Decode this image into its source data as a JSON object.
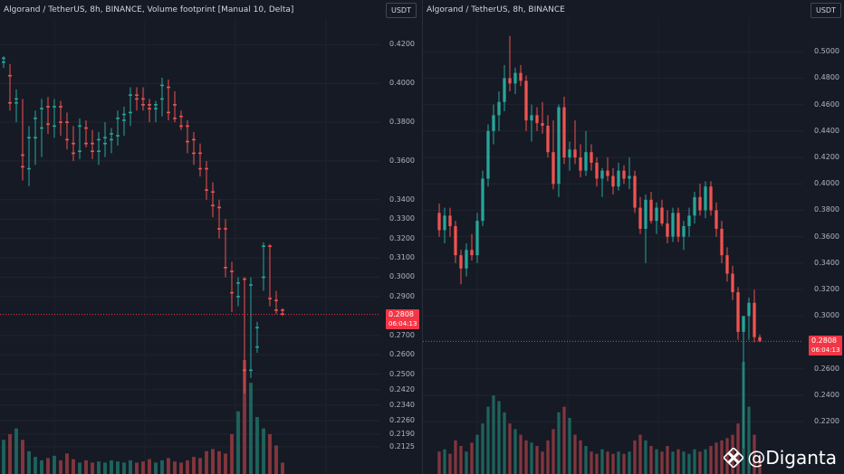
{
  "left_panel": {
    "title": "Algorand / TetherUS, 8h, BINANCE, Volume footprint [Manual 10, Delta]",
    "currency": "USDT",
    "axis_labels": [
      "0.4200",
      "0.4000",
      "0.3800",
      "0.3600",
      "0.3400",
      "0.3300",
      "0.3200",
      "0.3100",
      "0.3000",
      "0.2900",
      "0.2700",
      "0.2600",
      "0.2500",
      "0.2420",
      "0.2340",
      "0.2260",
      "0.2190",
      "0.2125"
    ],
    "axis_values": [
      0.42,
      0.4,
      0.38,
      0.36,
      0.34,
      0.33,
      0.32,
      0.31,
      0.3,
      0.29,
      0.27,
      0.26,
      0.25,
      0.242,
      0.234,
      0.226,
      0.219,
      0.2125
    ],
    "current_price": "0.2808",
    "countdown": "06:04:13"
  },
  "right_panel": {
    "title": "Algorand / TetherUS, 8h, BINANCE",
    "currency": "USDT",
    "axis_labels": [
      "0.5000",
      "0.4800",
      "0.4600",
      "0.4400",
      "0.4200",
      "0.4000",
      "0.3800",
      "0.3600",
      "0.3400",
      "0.3200",
      "0.3000",
      "0.2600",
      "0.2400",
      "0.2200"
    ],
    "axis_values": [
      0.5,
      0.48,
      0.46,
      0.44,
      0.42,
      0.4,
      0.38,
      0.36,
      0.34,
      0.32,
      0.3,
      0.26,
      0.24,
      0.22
    ],
    "current_price": "0.2808",
    "countdown": "06:04:13"
  },
  "watermark": {
    "handle": "@Diganta",
    "icon": "binance-logo-icon"
  },
  "colors": {
    "up": "#26a69a",
    "down": "#ef5350",
    "background": "#161a25",
    "price_tag": "#f23645"
  },
  "chart_data": [
    {
      "type": "candlestick",
      "title": "Algorand / TetherUS, 8h, BINANCE, Volume footprint [Manual 10, Delta]",
      "ylim": [
        0.205,
        0.43
      ],
      "series": [
        {
          "name": "",
          "values": [
            {
              "o": 0.411,
              "h": 0.414,
              "l": 0.408,
              "c": 0.413
            },
            {
              "o": 0.404,
              "h": 0.41,
              "l": 0.386,
              "c": 0.39
            },
            {
              "o": 0.39,
              "h": 0.397,
              "l": 0.38,
              "c": 0.392
            },
            {
              "o": 0.363,
              "h": 0.392,
              "l": 0.35,
              "c": 0.357
            },
            {
              "o": 0.356,
              "h": 0.378,
              "l": 0.347,
              "c": 0.372
            },
            {
              "o": 0.372,
              "h": 0.386,
              "l": 0.358,
              "c": 0.382
            },
            {
              "o": 0.377,
              "h": 0.392,
              "l": 0.362,
              "c": 0.387
            },
            {
              "o": 0.388,
              "h": 0.393,
              "l": 0.374,
              "c": 0.379
            },
            {
              "o": 0.378,
              "h": 0.392,
              "l": 0.372,
              "c": 0.388
            },
            {
              "o": 0.388,
              "h": 0.391,
              "l": 0.373,
              "c": 0.38
            },
            {
              "o": 0.38,
              "h": 0.385,
              "l": 0.366,
              "c": 0.371
            },
            {
              "o": 0.369,
              "h": 0.378,
              "l": 0.36,
              "c": 0.364
            },
            {
              "o": 0.365,
              "h": 0.382,
              "l": 0.361,
              "c": 0.378
            },
            {
              "o": 0.377,
              "h": 0.381,
              "l": 0.367,
              "c": 0.369
            },
            {
              "o": 0.369,
              "h": 0.376,
              "l": 0.361,
              "c": 0.365
            },
            {
              "o": 0.365,
              "h": 0.375,
              "l": 0.358,
              "c": 0.371
            },
            {
              "o": 0.369,
              "h": 0.38,
              "l": 0.362,
              "c": 0.372
            },
            {
              "o": 0.371,
              "h": 0.377,
              "l": 0.364,
              "c": 0.374
            },
            {
              "o": 0.373,
              "h": 0.386,
              "l": 0.368,
              "c": 0.382
            },
            {
              "o": 0.381,
              "h": 0.388,
              "l": 0.373,
              "c": 0.384
            },
            {
              "o": 0.385,
              "h": 0.398,
              "l": 0.378,
              "c": 0.394
            },
            {
              "o": 0.394,
              "h": 0.398,
              "l": 0.386,
              "c": 0.392
            },
            {
              "o": 0.392,
              "h": 0.398,
              "l": 0.386,
              "c": 0.389
            },
            {
              "o": 0.389,
              "h": 0.392,
              "l": 0.38,
              "c": 0.387
            },
            {
              "o": 0.387,
              "h": 0.391,
              "l": 0.38,
              "c": 0.389
            },
            {
              "o": 0.392,
              "h": 0.403,
              "l": 0.383,
              "c": 0.399
            },
            {
              "o": 0.398,
              "h": 0.402,
              "l": 0.381,
              "c": 0.385
            },
            {
              "o": 0.389,
              "h": 0.396,
              "l": 0.38,
              "c": 0.382
            },
            {
              "o": 0.383,
              "h": 0.386,
              "l": 0.376,
              "c": 0.378
            },
            {
              "o": 0.378,
              "h": 0.381,
              "l": 0.364,
              "c": 0.37
            },
            {
              "o": 0.371,
              "h": 0.375,
              "l": 0.358,
              "c": 0.364
            },
            {
              "o": 0.364,
              "h": 0.369,
              "l": 0.352,
              "c": 0.356
            },
            {
              "o": 0.356,
              "h": 0.36,
              "l": 0.34,
              "c": 0.345
            },
            {
              "o": 0.344,
              "h": 0.349,
              "l": 0.331,
              "c": 0.337
            },
            {
              "o": 0.336,
              "h": 0.34,
              "l": 0.32,
              "c": 0.325
            },
            {
              "o": 0.325,
              "h": 0.33,
              "l": 0.3,
              "c": 0.305
            },
            {
              "o": 0.303,
              "h": 0.308,
              "l": 0.282,
              "c": 0.292
            },
            {
              "o": 0.29,
              "h": 0.3,
              "l": 0.285,
              "c": 0.297
            },
            {
              "o": 0.299,
              "h": 0.3,
              "l": 0.24,
              "c": 0.252
            },
            {
              "o": 0.252,
              "h": 0.3,
              "l": 0.248,
              "c": 0.296
            },
            {
              "o": 0.264,
              "h": 0.277,
              "l": 0.261,
              "c": 0.274
            },
            {
              "o": 0.3,
              "h": 0.318,
              "l": 0.293,
              "c": 0.316
            },
            {
              "o": 0.316,
              "h": 0.317,
              "l": 0.285,
              "c": 0.289
            },
            {
              "o": 0.288,
              "h": 0.293,
              "l": 0.281,
              "c": 0.283
            },
            {
              "o": 0.283,
              "h": 0.284,
              "l": 0.28,
              "c": 0.281
            }
          ]
        }
      ],
      "volume": [
        0.3,
        0.35,
        0.4,
        0.3,
        0.2,
        0.15,
        0.12,
        0.14,
        0.16,
        0.12,
        0.18,
        0.13,
        0.1,
        0.12,
        0.1,
        0.11,
        0.1,
        0.12,
        0.11,
        0.1,
        0.12,
        0.1,
        0.11,
        0.13,
        0.1,
        0.12,
        0.14,
        0.11,
        0.1,
        0.12,
        0.15,
        0.14,
        0.2,
        0.22,
        0.2,
        0.18,
        0.35,
        0.55,
        1.0,
        0.8,
        0.5,
        0.4,
        0.35,
        0.25,
        0.1
      ]
    },
    {
      "type": "candlestick",
      "title": "Algorand / TetherUS, 8h, BINANCE",
      "ylim": [
        0.19,
        0.52
      ],
      "series": [
        {
          "name": "",
          "values": [
            {
              "o": 0.378,
              "h": 0.385,
              "l": 0.36,
              "c": 0.365
            },
            {
              "o": 0.365,
              "h": 0.382,
              "l": 0.355,
              "c": 0.376
            },
            {
              "o": 0.376,
              "h": 0.382,
              "l": 0.36,
              "c": 0.368
            },
            {
              "o": 0.368,
              "h": 0.372,
              "l": 0.34,
              "c": 0.346
            },
            {
              "o": 0.346,
              "h": 0.35,
              "l": 0.324,
              "c": 0.336
            },
            {
              "o": 0.336,
              "h": 0.355,
              "l": 0.33,
              "c": 0.35
            },
            {
              "o": 0.35,
              "h": 0.362,
              "l": 0.342,
              "c": 0.346
            },
            {
              "o": 0.346,
              "h": 0.378,
              "l": 0.34,
              "c": 0.372
            },
            {
              "o": 0.372,
              "h": 0.41,
              "l": 0.368,
              "c": 0.404
            },
            {
              "o": 0.404,
              "h": 0.445,
              "l": 0.398,
              "c": 0.44
            },
            {
              "o": 0.44,
              "h": 0.46,
              "l": 0.43,
              "c": 0.452
            },
            {
              "o": 0.452,
              "h": 0.47,
              "l": 0.44,
              "c": 0.462
            },
            {
              "o": 0.462,
              "h": 0.49,
              "l": 0.455,
              "c": 0.48
            },
            {
              "o": 0.48,
              "h": 0.512,
              "l": 0.47,
              "c": 0.476
            },
            {
              "o": 0.476,
              "h": 0.488,
              "l": 0.468,
              "c": 0.484
            },
            {
              "o": 0.484,
              "h": 0.49,
              "l": 0.474,
              "c": 0.478
            },
            {
              "o": 0.478,
              "h": 0.482,
              "l": 0.44,
              "c": 0.448
            },
            {
              "o": 0.448,
              "h": 0.46,
              "l": 0.432,
              "c": 0.452
            },
            {
              "o": 0.452,
              "h": 0.458,
              "l": 0.44,
              "c": 0.446
            },
            {
              "o": 0.446,
              "h": 0.462,
              "l": 0.438,
              "c": 0.444
            },
            {
              "o": 0.444,
              "h": 0.452,
              "l": 0.42,
              "c": 0.424
            },
            {
              "o": 0.424,
              "h": 0.448,
              "l": 0.396,
              "c": 0.4
            },
            {
              "o": 0.4,
              "h": 0.46,
              "l": 0.39,
              "c": 0.458
            },
            {
              "o": 0.458,
              "h": 0.466,
              "l": 0.415,
              "c": 0.42
            },
            {
              "o": 0.42,
              "h": 0.432,
              "l": 0.41,
              "c": 0.426
            },
            {
              "o": 0.426,
              "h": 0.448,
              "l": 0.415,
              "c": 0.42
            },
            {
              "o": 0.42,
              "h": 0.43,
              "l": 0.405,
              "c": 0.41
            },
            {
              "o": 0.41,
              "h": 0.44,
              "l": 0.406,
              "c": 0.424
            },
            {
              "o": 0.424,
              "h": 0.43,
              "l": 0.41,
              "c": 0.416
            },
            {
              "o": 0.416,
              "h": 0.42,
              "l": 0.398,
              "c": 0.404
            },
            {
              "o": 0.404,
              "h": 0.412,
              "l": 0.39,
              "c": 0.41
            },
            {
              "o": 0.41,
              "h": 0.42,
              "l": 0.402,
              "c": 0.406
            },
            {
              "o": 0.406,
              "h": 0.412,
              "l": 0.392,
              "c": 0.398
            },
            {
              "o": 0.398,
              "h": 0.416,
              "l": 0.395,
              "c": 0.41
            },
            {
              "o": 0.41,
              "h": 0.414,
              "l": 0.4,
              "c": 0.404
            },
            {
              "o": 0.404,
              "h": 0.42,
              "l": 0.396,
              "c": 0.406
            },
            {
              "o": 0.406,
              "h": 0.41,
              "l": 0.378,
              "c": 0.382
            },
            {
              "o": 0.382,
              "h": 0.39,
              "l": 0.362,
              "c": 0.366
            },
            {
              "o": 0.366,
              "h": 0.392,
              "l": 0.34,
              "c": 0.388
            },
            {
              "o": 0.388,
              "h": 0.394,
              "l": 0.37,
              "c": 0.372
            },
            {
              "o": 0.372,
              "h": 0.386,
              "l": 0.362,
              "c": 0.382
            },
            {
              "o": 0.382,
              "h": 0.388,
              "l": 0.368,
              "c": 0.37
            },
            {
              "o": 0.37,
              "h": 0.38,
              "l": 0.355,
              "c": 0.36
            },
            {
              "o": 0.36,
              "h": 0.382,
              "l": 0.356,
              "c": 0.378
            },
            {
              "o": 0.378,
              "h": 0.382,
              "l": 0.356,
              "c": 0.36
            },
            {
              "o": 0.36,
              "h": 0.372,
              "l": 0.35,
              "c": 0.368
            },
            {
              "o": 0.368,
              "h": 0.382,
              "l": 0.36,
              "c": 0.376
            },
            {
              "o": 0.376,
              "h": 0.394,
              "l": 0.37,
              "c": 0.39
            },
            {
              "o": 0.39,
              "h": 0.4,
              "l": 0.376,
              "c": 0.38
            },
            {
              "o": 0.38,
              "h": 0.402,
              "l": 0.374,
              "c": 0.398
            },
            {
              "o": 0.398,
              "h": 0.402,
              "l": 0.376,
              "c": 0.38
            },
            {
              "o": 0.38,
              "h": 0.386,
              "l": 0.36,
              "c": 0.366
            },
            {
              "o": 0.366,
              "h": 0.372,
              "l": 0.34,
              "c": 0.346
            },
            {
              "o": 0.346,
              "h": 0.352,
              "l": 0.326,
              "c": 0.332
            },
            {
              "o": 0.332,
              "h": 0.338,
              "l": 0.312,
              "c": 0.318
            },
            {
              "o": 0.318,
              "h": 0.322,
              "l": 0.282,
              "c": 0.288
            },
            {
              "o": 0.288,
              "h": 0.296,
              "l": 0.2,
              "c": 0.3
            },
            {
              "o": 0.3,
              "h": 0.314,
              "l": 0.282,
              "c": 0.31
            },
            {
              "o": 0.31,
              "h": 0.32,
              "l": 0.28,
              "c": 0.284
            },
            {
              "o": 0.284,
              "h": 0.286,
              "l": 0.28,
              "c": 0.281
            }
          ]
        }
      ],
      "volume": [
        0.2,
        0.22,
        0.18,
        0.3,
        0.25,
        0.2,
        0.28,
        0.35,
        0.45,
        0.6,
        0.7,
        0.65,
        0.55,
        0.45,
        0.4,
        0.35,
        0.3,
        0.28,
        0.25,
        0.2,
        0.3,
        0.4,
        0.55,
        0.6,
        0.5,
        0.35,
        0.3,
        0.25,
        0.2,
        0.18,
        0.22,
        0.2,
        0.18,
        0.2,
        0.18,
        0.2,
        0.3,
        0.35,
        0.3,
        0.25,
        0.22,
        0.2,
        0.25,
        0.2,
        0.22,
        0.2,
        0.18,
        0.22,
        0.2,
        0.22,
        0.25,
        0.28,
        0.3,
        0.32,
        0.35,
        0.45,
        1.0,
        0.6,
        0.35,
        0.15
      ]
    }
  ]
}
